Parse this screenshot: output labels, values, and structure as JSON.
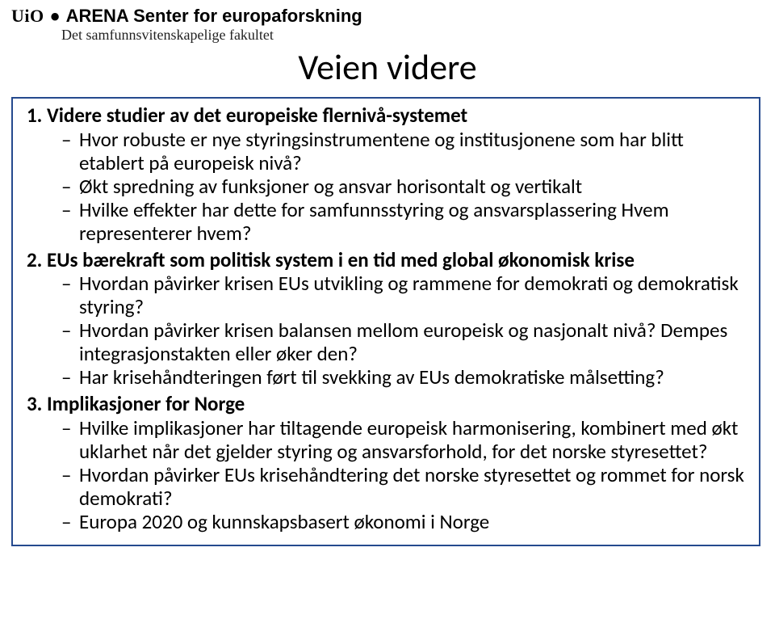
{
  "logo": {
    "uio": "UiO",
    "sep": "•",
    "arena": "ARENA Senter for europaforskning",
    "faculty": "Det samfunnsvitenskapelige fakultet"
  },
  "title": "Veien videre",
  "box_border_color": "#254a8e",
  "text_color": "#000000",
  "background_color": "#ffffff",
  "title_fontsize": 44,
  "body_fontsize": 25,
  "points": [
    {
      "title": "Videre studier av det europeiske flernivå-systemet",
      "subs": [
        "Hvor robuste er nye styringsinstrumentene og institusjonene som har blitt etablert på europeisk nivå?",
        "Økt spredning av funksjoner og ansvar horisontalt og vertikalt",
        "Hvilke effekter har dette for samfunnsstyring og ansvarsplassering Hvem representerer hvem?"
      ]
    },
    {
      "title": "EUs bærekraft som politisk system i en tid med global økonomisk krise",
      "subs": [
        "Hvordan påvirker krisen EUs utvikling og rammene for demokrati og demokratisk styring?",
        "Hvordan påvirker krisen balansen mellom  europeisk og nasjonalt nivå? Dempes integrasjonstakten eller øker den?",
        "Har krisehåndteringen ført til svekking av EUs demokratiske målsetting?"
      ]
    },
    {
      "title": "Implikasjoner for Norge",
      "subs": [
        "Hvilke implikasjoner har tiltagende europeisk harmonisering, kombinert med økt uklarhet når det gjelder styring og ansvarsforhold, for det norske styresettet?",
        "Hvordan påvirker EUs krisehåndtering det norske styresettet og rommet for norsk demokrati?",
        "Europa 2020 og kunnskapsbasert økonomi i Norge"
      ]
    }
  ]
}
